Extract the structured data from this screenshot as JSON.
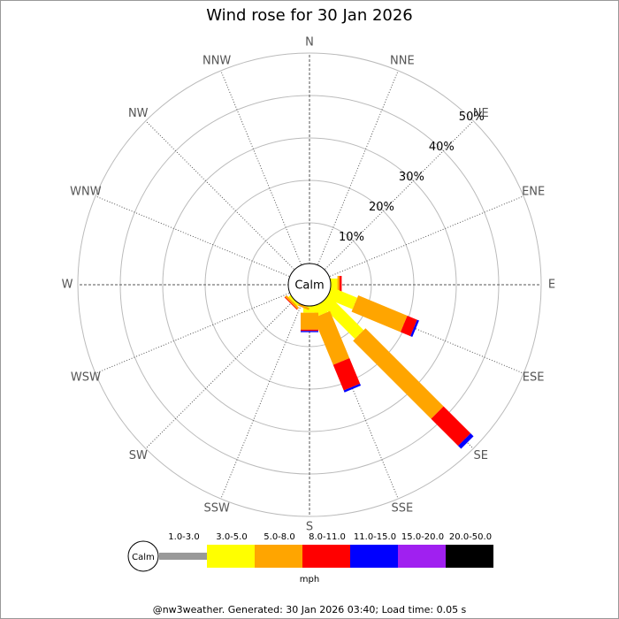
{
  "chart_data": {
    "type": "windrose",
    "title": "Wind rose for 30 Jan 2026",
    "calm_label": "Calm",
    "categories": [
      "N",
      "NNE",
      "NE",
      "ENE",
      "E",
      "ESE",
      "SE",
      "SSE",
      "S",
      "SSW",
      "SW",
      "WSW",
      "W",
      "WNW",
      "NW",
      "NNW"
    ],
    "rlim": [
      0,
      50
    ],
    "rticks": [
      {
        "value": 10,
        "label": "10%"
      },
      {
        "value": 20,
        "label": "20%"
      },
      {
        "value": 30,
        "label": "30%"
      },
      {
        "value": 40,
        "label": "40%"
      },
      {
        "value": 50,
        "label": "50%"
      }
    ],
    "series": [
      {
        "name": "1.0-3.0",
        "color": "#999999",
        "values": [
          0,
          0,
          0,
          0,
          0,
          0,
          0,
          0,
          0,
          0,
          0,
          0,
          0,
          0,
          0,
          0
        ]
      },
      {
        "name": "3.0-5.0",
        "color": "#ffff00",
        "values": [
          0,
          0,
          0,
          0,
          2,
          7,
          12,
          3,
          2,
          0.5,
          1,
          0,
          0,
          0,
          0,
          0
        ]
      },
      {
        "name": "5.0-8.0",
        "color": "#ffa500",
        "values": [
          0,
          0,
          0,
          0,
          0.5,
          12.5,
          26,
          12,
          4,
          0.5,
          0.5,
          0,
          0,
          0,
          0,
          0
        ]
      },
      {
        "name": "8.0-11.0",
        "color": "#ff0000",
        "values": [
          0,
          0,
          0,
          0,
          0.5,
          2.5,
          9,
          6.5,
          0.3,
          0,
          0.2,
          0,
          0,
          0,
          0,
          0
        ]
      },
      {
        "name": "11.0-15.0",
        "color": "#0000ff",
        "values": [
          0,
          0,
          0,
          0,
          0,
          0.5,
          1,
          0.5,
          0.3,
          0,
          0,
          0,
          0,
          0,
          0,
          0
        ]
      },
      {
        "name": "15.0-20.0",
        "color": "#a020f0",
        "values": [
          0,
          0,
          0,
          0,
          0,
          0,
          0,
          0,
          0,
          0,
          0,
          0,
          0,
          0,
          0,
          0
        ]
      },
      {
        "name": "20.0-50.0",
        "color": "#000000",
        "values": [
          0,
          0,
          0,
          0,
          0,
          0,
          0,
          0,
          0,
          0,
          0,
          0,
          0,
          0,
          0,
          0
        ]
      }
    ],
    "unit": "mph",
    "footer": "@nw3weather. Generated: 30 Jan 2026 03:40; Load time: 0.05 s"
  }
}
